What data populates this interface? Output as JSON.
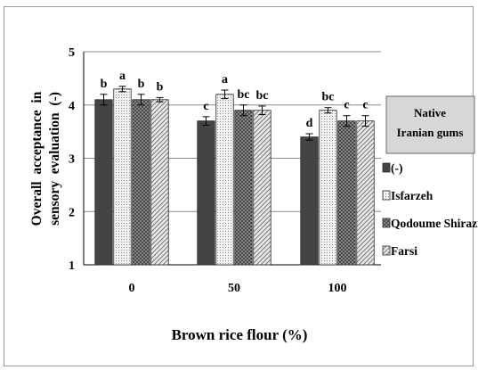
{
  "chart_data": {
    "type": "bar",
    "ylabel": "Overall acceptance in sensory evaluation (-)",
    "ylabel_lines": [
      "Overall  acceptance  in",
      "sensory  evaluation  (-)"
    ],
    "xlabel": "Brown rice flour (%)",
    "categories": [
      "0",
      "50",
      "100"
    ],
    "ylim": [
      1,
      5
    ],
    "yticks": [
      "1",
      "2",
      "3",
      "4",
      "5"
    ],
    "grid": true,
    "legend_title": [
      "Native",
      "Iranian gums"
    ],
    "legend_placement": "right",
    "series": [
      {
        "name": "(-)",
        "values": [
          4.1,
          3.7,
          3.4
        ],
        "errors": [
          0.1,
          0.08,
          0.06
        ],
        "letters": [
          "b",
          "c",
          "d"
        ],
        "color": "#444444",
        "pattern": "solid"
      },
      {
        "name": "Isfarzeh",
        "values": [
          4.3,
          4.2,
          3.9
        ],
        "errors": [
          0.05,
          0.08,
          0.05
        ],
        "letters": [
          "a",
          "a",
          "bc"
        ],
        "color": "#dcdcdc",
        "pattern": "dots"
      },
      {
        "name": "Qodoume Shirazi",
        "values": [
          4.1,
          3.9,
          3.7
        ],
        "errors": [
          0.1,
          0.1,
          0.1
        ],
        "letters": [
          "b",
          "bc",
          "c"
        ],
        "color": "#777777",
        "pattern": "cross"
      },
      {
        "name": "Farsi",
        "values": [
          4.1,
          3.9,
          3.7
        ],
        "errors": [
          0.04,
          0.08,
          0.1
        ],
        "letters": [
          "b",
          "bc",
          "c"
        ],
        "color": "#cfcfcf",
        "pattern": "diag"
      }
    ]
  }
}
